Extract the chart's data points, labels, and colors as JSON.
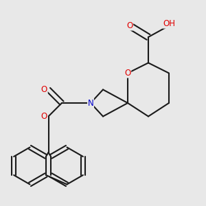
{
  "bg_color": "#e8e8e8",
  "bond_color": "#1a1a1a",
  "bond_width": 1.5,
  "atom_colors": {
    "O": "#e00000",
    "N": "#0000cc",
    "C": "#1a1a1a",
    "H": "#808080"
  },
  "font_size": 8.5
}
